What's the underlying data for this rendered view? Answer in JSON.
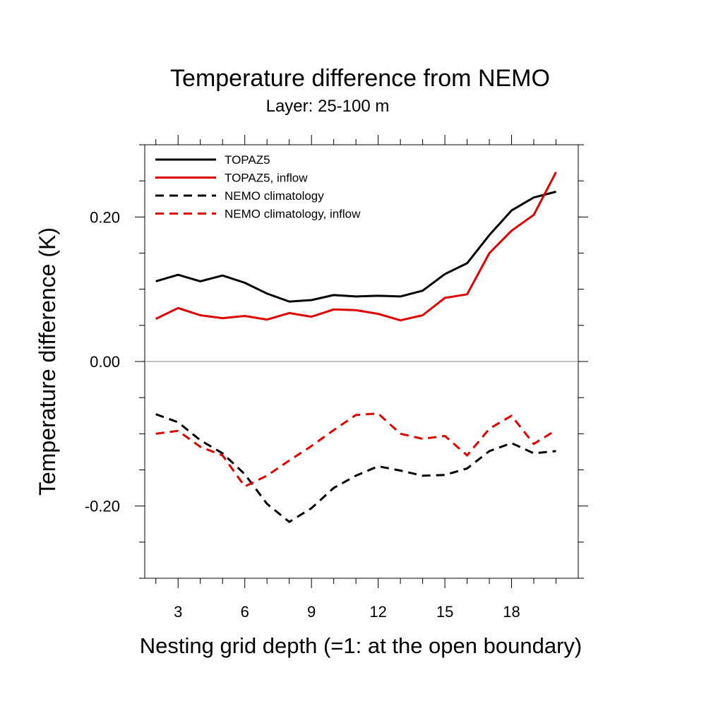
{
  "chart_data": {
    "type": "line",
    "title": "Temperature difference from NEMO",
    "subtitle": "Layer: 25-100 m",
    "xlabel": "Nesting grid depth (=1: at the open boundary)",
    "ylabel": "Temperature difference (K)",
    "xlim": [
      1.5,
      21.0
    ],
    "ylim": [
      -0.3,
      0.3
    ],
    "x_ticks": [
      3,
      6,
      9,
      12,
      15,
      18
    ],
    "x_tick_labels": [
      "3",
      "6",
      "9",
      "12",
      "15",
      "18"
    ],
    "y_ticks": [
      -0.2,
      0.0,
      0.2
    ],
    "y_tick_labels": [
      "-0.20",
      "0.00",
      "0.20"
    ],
    "legend_position": "top-left",
    "zero_line": true,
    "x": [
      2,
      3,
      4,
      5,
      6,
      7,
      8,
      9,
      10,
      11,
      12,
      13,
      14,
      15,
      16,
      17,
      18,
      19,
      20
    ],
    "series": [
      {
        "name": "TOPAZ5",
        "color": "#000000",
        "style": "solid",
        "values": [
          0.111,
          0.12,
          0.111,
          0.119,
          0.109,
          0.094,
          0.083,
          0.085,
          0.092,
          0.09,
          0.091,
          0.09,
          0.098,
          0.121,
          0.136,
          0.175,
          0.209,
          0.227,
          0.235
        ]
      },
      {
        "name": "TOPAZ5, inflow",
        "color": "#e00000",
        "style": "solid",
        "values": [
          0.059,
          0.074,
          0.064,
          0.06,
          0.063,
          0.058,
          0.067,
          0.062,
          0.072,
          0.071,
          0.066,
          0.057,
          0.064,
          0.088,
          0.093,
          0.15,
          0.181,
          0.203,
          0.262
        ]
      },
      {
        "name": "NEMO climatology",
        "color": "#000000",
        "style": "dashed",
        "values": [
          -0.073,
          -0.084,
          -0.109,
          -0.127,
          -0.156,
          -0.197,
          -0.222,
          -0.203,
          -0.175,
          -0.158,
          -0.145,
          -0.151,
          -0.158,
          -0.157,
          -0.148,
          -0.124,
          -0.113,
          -0.127,
          -0.124
        ]
      },
      {
        "name": "NEMO climatology, inflow",
        "color": "#e00000",
        "style": "dashed",
        "values": [
          -0.1,
          -0.096,
          -0.118,
          -0.13,
          -0.173,
          -0.158,
          -0.137,
          -0.117,
          -0.095,
          -0.074,
          -0.072,
          -0.1,
          -0.107,
          -0.103,
          -0.13,
          -0.093,
          -0.075,
          -0.114,
          -0.095
        ]
      }
    ]
  }
}
